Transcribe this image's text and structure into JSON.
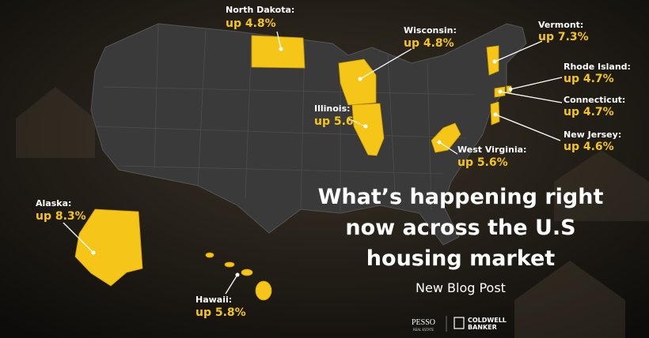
{
  "labels": [
    {
      "state": "North Dakota:",
      "change": "up 4.8%"
    },
    {
      "state": "Wisconsin:",
      "change": "up 4.8%"
    },
    {
      "state": "Vermont:",
      "change": "up 7.3%"
    },
    {
      "state": "Rhode Island:",
      "change": "up 4.7%"
    },
    {
      "state": "Connecticut:",
      "change": "up 4.7%"
    },
    {
      "state": "New Jersey:",
      "change": "up 4.6%"
    },
    {
      "state": "Illinois:",
      "change": "up 5.6%"
    },
    {
      "state": "West Virginia:",
      "change": "up 5.6%"
    },
    {
      "state": "Alaska:",
      "change": "up 8.3%"
    },
    {
      "state": "Hawaii:",
      "change": "up 5.8%"
    }
  ],
  "headline": {
    "lines": [
      "What’s happening right",
      "now across the U.S",
      "housing market"
    ],
    "subtitle": "New Blog Post"
  },
  "footer": {
    "brand1": "PESSO",
    "brand1_tag": "REAL ESTATE",
    "brand2_line1": "COLDWELL",
    "brand2_line2": "BANKER"
  }
}
